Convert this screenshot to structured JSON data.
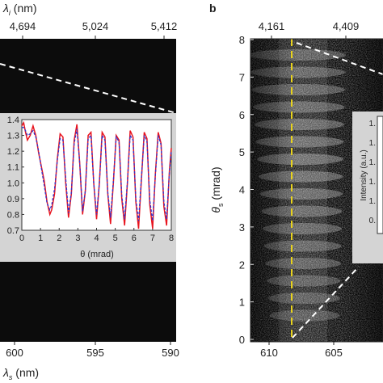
{
  "panel_b": {
    "letter": "b"
  },
  "chart_data": [
    {
      "id": "panel-a-main",
      "type": "heatmap",
      "top_axis": {
        "label": "λ",
        "label_sub": "i",
        "unit": " (nm)",
        "ticks": [
          "4,694",
          "5,024",
          "5,412"
        ]
      },
      "bottom_axis": {
        "label": "λ",
        "label_sub": "s",
        "unit": " (nm)",
        "ticks": [
          "600",
          "595",
          "590"
        ]
      },
      "background_color": "#0c0c0c",
      "overlay_line": {
        "style": "dashed",
        "color": "#ffffff"
      }
    },
    {
      "id": "panel-a-inset",
      "type": "line",
      "xlabel": "θ (mrad)",
      "xlim": [
        0,
        8
      ],
      "ylim": [
        0.7,
        1.4
      ],
      "xticks": [
        "0",
        "1",
        "2",
        "3",
        "4",
        "5",
        "6",
        "7",
        "8"
      ],
      "yticks": [
        "0.7",
        "0.8",
        "0.9",
        "1.0",
        "1.1",
        "1.2",
        "1.3",
        "1.4"
      ],
      "grid": false,
      "series": [
        {
          "style": "solid",
          "color": "#e8141e",
          "x": [
            0.0,
            0.1,
            0.2,
            0.3,
            0.45,
            0.6,
            0.75,
            0.9,
            1.05,
            1.2,
            1.35,
            1.5,
            1.6,
            1.75,
            1.9,
            2.05,
            2.2,
            2.35,
            2.5,
            2.65,
            2.8,
            2.95,
            3.1,
            3.25,
            3.4,
            3.55,
            3.7,
            3.85,
            4.0,
            4.15,
            4.3,
            4.45,
            4.6,
            4.75,
            4.9,
            5.05,
            5.2,
            5.35,
            5.5,
            5.65,
            5.8,
            5.95,
            6.1,
            6.25,
            6.4,
            6.55,
            6.7,
            6.85,
            7.0,
            7.15,
            7.3,
            7.45,
            7.6,
            7.75,
            7.9,
            8.0
          ],
          "y": [
            1.36,
            1.38,
            1.32,
            1.27,
            1.3,
            1.36,
            1.3,
            1.19,
            1.1,
            1.01,
            0.88,
            0.8,
            0.83,
            0.93,
            1.15,
            1.31,
            1.29,
            1.0,
            0.78,
            0.93,
            1.27,
            1.37,
            1.12,
            0.8,
            0.95,
            1.3,
            1.32,
            1.0,
            0.77,
            1.0,
            1.32,
            1.29,
            0.93,
            0.74,
            1.0,
            1.3,
            1.27,
            0.9,
            0.73,
            1.0,
            1.33,
            1.29,
            0.88,
            0.71,
            1.02,
            1.32,
            1.28,
            0.86,
            0.71,
            1.06,
            1.32,
            1.25,
            0.85,
            0.73,
            1.08,
            1.22
          ]
        },
        {
          "style": "dashed",
          "color": "#3333cc",
          "x": [
            0.0,
            0.1,
            0.2,
            0.3,
            0.45,
            0.6,
            0.75,
            0.9,
            1.05,
            1.2,
            1.35,
            1.5,
            1.6,
            1.75,
            1.9,
            2.05,
            2.2,
            2.35,
            2.5,
            2.65,
            2.8,
            2.95,
            3.1,
            3.25,
            3.4,
            3.55,
            3.7,
            3.85,
            4.0,
            4.15,
            4.3,
            4.45,
            4.6,
            4.75,
            4.9,
            5.05,
            5.2,
            5.35,
            5.5,
            5.65,
            5.8,
            5.95,
            6.1,
            6.25,
            6.4,
            6.55,
            6.7,
            6.85,
            7.0,
            7.15,
            7.3,
            7.45,
            7.6,
            7.75,
            7.9,
            8.0
          ],
          "y": [
            1.35,
            1.35,
            1.33,
            1.3,
            1.31,
            1.33,
            1.29,
            1.2,
            1.09,
            0.98,
            0.87,
            0.83,
            0.86,
            0.96,
            1.14,
            1.28,
            1.27,
            1.03,
            0.81,
            0.94,
            1.25,
            1.34,
            1.12,
            0.82,
            0.95,
            1.28,
            1.3,
            1.0,
            0.8,
            1.0,
            1.3,
            1.27,
            0.94,
            0.78,
            1.01,
            1.29,
            1.26,
            0.92,
            0.77,
            1.01,
            1.3,
            1.27,
            0.9,
            0.76,
            1.03,
            1.3,
            1.26,
            0.89,
            0.76,
            1.05,
            1.3,
            1.24,
            0.88,
            0.77,
            1.07,
            1.2
          ]
        }
      ]
    },
    {
      "id": "panel-b",
      "type": "heatmap",
      "top_axis": {
        "ticks": [
          "4,161",
          "4,409"
        ]
      },
      "bottom_axis": {
        "ticks": [
          "610",
          "605"
        ]
      },
      "ylabel": "θ",
      "ylabel_sub": "s",
      "yunit": " (mrad)",
      "ylim": [
        0,
        8
      ],
      "yticks": [
        "0",
        "1",
        "2",
        "3",
        "4",
        "5",
        "6",
        "7",
        "8"
      ],
      "marker_line": {
        "style": "dashed",
        "color": "#e8d21c"
      },
      "overlay_line": {
        "style": "dashed",
        "color": "#ffffff"
      },
      "inset": {
        "ylabel": "Intensity (a.u.)",
        "ytick_partial": [
          "1.",
          "1.",
          "1.",
          "1.",
          "1.",
          "0."
        ]
      }
    }
  ]
}
